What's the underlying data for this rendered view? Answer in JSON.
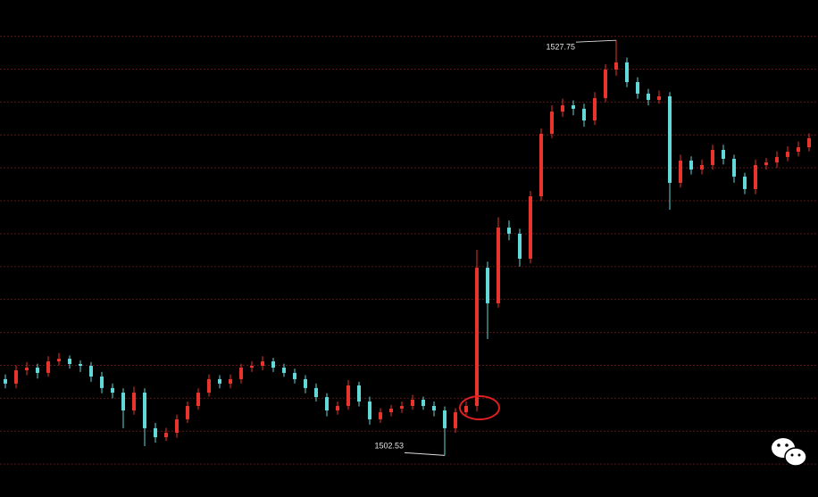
{
  "chart_data": {
    "type": "candlestick",
    "up_color": "#e8342c",
    "down_color": "#62d9d9",
    "grid_color": "#5a1414",
    "ylim": [
      1500,
      1530.2
    ],
    "grid_levels": [
      1502,
      1504,
      1506,
      1508,
      1510,
      1512,
      1514,
      1516,
      1518,
      1520,
      1522,
      1524,
      1526,
      1528
    ],
    "annotations": [
      1527.75,
      1502.53
    ],
    "candles": [
      [
        1507.16,
        1507.45,
        1506.6,
        1506.89
      ],
      [
        1506.89,
        1508.0,
        1506.6,
        1507.7
      ],
      [
        1507.7,
        1508.2,
        1507.4,
        1507.86
      ],
      [
        1507.86,
        1508.1,
        1507.2,
        1507.54
      ],
      [
        1507.54,
        1508.55,
        1507.3,
        1508.24
      ],
      [
        1508.24,
        1508.75,
        1508.0,
        1508.4
      ],
      [
        1508.4,
        1508.6,
        1507.8,
        1508.08
      ],
      [
        1508.08,
        1508.3,
        1507.6,
        1507.97
      ],
      [
        1507.97,
        1508.2,
        1507.0,
        1507.32
      ],
      [
        1507.32,
        1507.6,
        1506.3,
        1506.62
      ],
      [
        1506.62,
        1506.9,
        1506.0,
        1506.34
      ],
      [
        1506.34,
        1506.6,
        1504.18,
        1505.26
      ],
      [
        1505.26,
        1506.7,
        1505.0,
        1506.34
      ],
      [
        1506.34,
        1506.6,
        1503.09,
        1504.18
      ],
      [
        1504.18,
        1504.5,
        1503.3,
        1503.63
      ],
      [
        1503.63,
        1504.2,
        1503.4,
        1503.9
      ],
      [
        1503.9,
        1505.0,
        1503.6,
        1504.72
      ],
      [
        1504.72,
        1505.8,
        1504.5,
        1505.53
      ],
      [
        1505.53,
        1506.6,
        1505.3,
        1506.34
      ],
      [
        1506.34,
        1507.45,
        1506.1,
        1507.16
      ],
      [
        1507.16,
        1507.4,
        1506.6,
        1506.89
      ],
      [
        1506.89,
        1507.45,
        1506.6,
        1507.16
      ],
      [
        1507.16,
        1508.1,
        1506.9,
        1507.86
      ],
      [
        1507.86,
        1508.25,
        1507.6,
        1507.97
      ],
      [
        1507.97,
        1508.55,
        1507.7,
        1508.24
      ],
      [
        1508.24,
        1508.45,
        1507.6,
        1507.86
      ],
      [
        1507.86,
        1508.1,
        1507.3,
        1507.54
      ],
      [
        1507.54,
        1507.8,
        1506.9,
        1507.16
      ],
      [
        1507.16,
        1507.4,
        1506.3,
        1506.62
      ],
      [
        1506.62,
        1506.9,
        1505.8,
        1506.07
      ],
      [
        1506.07,
        1506.3,
        1504.9,
        1505.26
      ],
      [
        1505.26,
        1505.8,
        1505.0,
        1505.53
      ],
      [
        1505.53,
        1507.1,
        1505.3,
        1506.78
      ],
      [
        1506.78,
        1507.0,
        1505.5,
        1505.8
      ],
      [
        1505.8,
        1506.1,
        1504.4,
        1504.72
      ],
      [
        1504.72,
        1505.4,
        1504.5,
        1505.15
      ],
      [
        1505.15,
        1505.6,
        1504.9,
        1505.37
      ],
      [
        1505.37,
        1505.8,
        1505.1,
        1505.53
      ],
      [
        1505.53,
        1506.2,
        1505.3,
        1505.91
      ],
      [
        1505.91,
        1506.1,
        1505.3,
        1505.53
      ],
      [
        1505.53,
        1505.8,
        1504.9,
        1505.26
      ],
      [
        1505.26,
        1505.5,
        1502.53,
        1504.18
      ],
      [
        1504.18,
        1505.4,
        1503.9,
        1505.15
      ],
      [
        1505.15,
        1505.8,
        1504.9,
        1505.53
      ],
      [
        1505.53,
        1515.02,
        1505.2,
        1513.93
      ],
      [
        1513.93,
        1514.3,
        1509.6,
        1511.77
      ],
      [
        1511.77,
        1517.0,
        1511.5,
        1516.37
      ],
      [
        1516.37,
        1516.8,
        1515.6,
        1516.0
      ],
      [
        1516.0,
        1516.3,
        1514.0,
        1514.48
      ],
      [
        1514.48,
        1518.6,
        1514.2,
        1518.27
      ],
      [
        1518.27,
        1522.4,
        1518.0,
        1522.07
      ],
      [
        1522.07,
        1523.8,
        1521.8,
        1523.42
      ],
      [
        1523.42,
        1524.2,
        1523.1,
        1523.8
      ],
      [
        1523.8,
        1524.1,
        1523.2,
        1523.59
      ],
      [
        1523.59,
        1523.9,
        1522.5,
        1522.88
      ],
      [
        1522.88,
        1524.6,
        1522.6,
        1524.24
      ],
      [
        1524.24,
        1526.3,
        1524.0,
        1525.97
      ],
      [
        1525.97,
        1527.75,
        1525.6,
        1526.41
      ],
      [
        1526.41,
        1526.7,
        1524.9,
        1525.21
      ],
      [
        1525.21,
        1525.5,
        1524.2,
        1524.51
      ],
      [
        1524.51,
        1524.8,
        1523.8,
        1524.13
      ],
      [
        1524.13,
        1524.7,
        1523.9,
        1524.35
      ],
      [
        1524.35,
        1524.6,
        1517.46,
        1519.09
      ],
      [
        1519.09,
        1520.8,
        1518.8,
        1520.44
      ],
      [
        1520.44,
        1520.7,
        1519.6,
        1519.9
      ],
      [
        1519.9,
        1520.5,
        1519.6,
        1520.17
      ],
      [
        1520.17,
        1521.4,
        1519.9,
        1521.09
      ],
      [
        1521.09,
        1521.4,
        1520.2,
        1520.55
      ],
      [
        1520.55,
        1520.8,
        1519.1,
        1519.47
      ],
      [
        1519.47,
        1519.7,
        1518.4,
        1518.71
      ],
      [
        1518.71,
        1520.5,
        1518.4,
        1520.17
      ],
      [
        1520.17,
        1520.6,
        1519.9,
        1520.33
      ],
      [
        1520.33,
        1521.0,
        1520.0,
        1520.66
      ],
      [
        1520.66,
        1521.3,
        1520.4,
        1520.98
      ],
      [
        1520.98,
        1521.6,
        1520.7,
        1521.25
      ],
      [
        1521.25,
        1522.1,
        1521.0,
        1521.8
      ]
    ]
  }
}
